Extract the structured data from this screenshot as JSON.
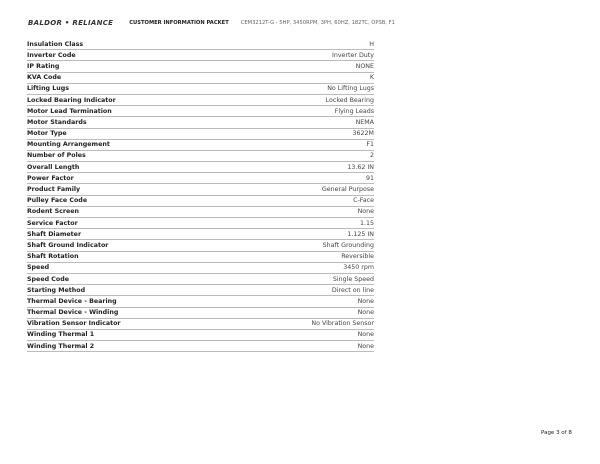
{
  "header": {
    "logo": "BALDOR • RELIANCE",
    "title": "CUSTOMER INFORMATION PACKET",
    "description": "CEM3212T-G - 5HP, 3450RPM, 3PH, 60HZ, 182TC, OPSB, F1"
  },
  "specs": [
    {
      "label": "Insulation Class",
      "value": "H"
    },
    {
      "label": "Inverter Code",
      "value": "Inverter Duty"
    },
    {
      "label": "IP Rating",
      "value": "NONE"
    },
    {
      "label": "KVA Code",
      "value": "K"
    },
    {
      "label": "Lifting Lugs",
      "value": "No Lifting Lugs"
    },
    {
      "label": "Locked Bearing Indicator",
      "value": "Locked Bearing"
    },
    {
      "label": "Motor Lead Termination",
      "value": "Flying Leads"
    },
    {
      "label": "Motor Standards",
      "value": "NEMA"
    },
    {
      "label": "Motor Type",
      "value": "3622M"
    },
    {
      "label": "Mounting Arrangement",
      "value": "F1"
    },
    {
      "label": "Number of Poles",
      "value": "2"
    },
    {
      "label": "Overall Length",
      "value": "13.62 IN"
    },
    {
      "label": "Power Factor",
      "value": "91"
    },
    {
      "label": "Product Family",
      "value": "General Purpose"
    },
    {
      "label": "Pulley Face Code",
      "value": "C-Face"
    },
    {
      "label": "Rodent Screen",
      "value": "None"
    },
    {
      "label": "Service Factor",
      "value": "1.15"
    },
    {
      "label": "Shaft Diameter",
      "value": "1.125 IN"
    },
    {
      "label": "Shaft Ground Indicator",
      "value": "Shaft Grounding"
    },
    {
      "label": "Shaft Rotation",
      "value": "Reversible"
    },
    {
      "label": "Speed",
      "value": "3450 rpm"
    },
    {
      "label": "Speed Code",
      "value": "Single Speed"
    },
    {
      "label": "Starting Method",
      "value": "Direct on line"
    },
    {
      "label": "Thermal Device - Bearing",
      "value": "None"
    },
    {
      "label": "Thermal Device - Winding",
      "value": "None"
    },
    {
      "label": "Vibration Sensor Indicator",
      "value": "No Vibration Sensor"
    },
    {
      "label": "Winding Thermal 1",
      "value": "None"
    },
    {
      "label": "Winding Thermal 2",
      "value": "None"
    }
  ],
  "footer": {
    "page": "Page 3 of 8"
  }
}
